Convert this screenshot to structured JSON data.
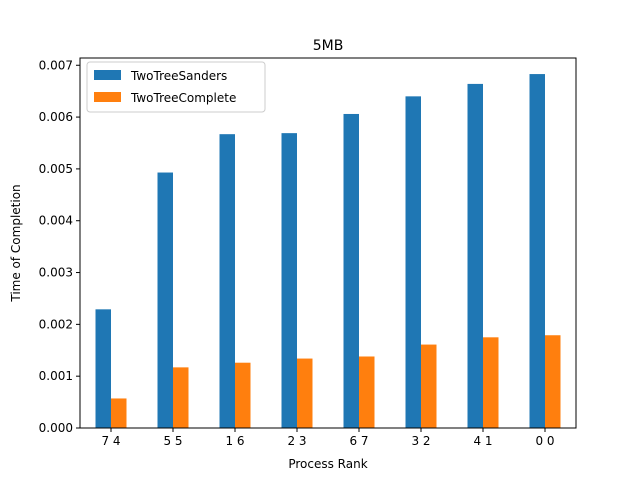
{
  "chart_data": {
    "type": "bar",
    "title": "5MB",
    "xlabel": "Process Rank",
    "ylabel": "Time of Completion",
    "categories": [
      "7 4",
      "5 5",
      "1 6",
      "2 3",
      "6 7",
      "3 2",
      "4 1",
      "0 0"
    ],
    "series": [
      {
        "name": "TwoTreeSanders",
        "color": "#1f77b4",
        "values": [
          0.00229,
          0.00493,
          0.00567,
          0.00569,
          0.00606,
          0.0064,
          0.00664,
          0.00683
        ]
      },
      {
        "name": "TwoTreeComplete",
        "color": "#ff7f0e",
        "values": [
          0.00057,
          0.00117,
          0.00126,
          0.00134,
          0.00138,
          0.00161,
          0.00175,
          0.00179
        ]
      }
    ],
    "ylim": [
      0,
      0.00714
    ],
    "yticks": [
      0.0,
      0.001,
      0.002,
      0.003,
      0.004,
      0.005,
      0.006,
      0.007
    ],
    "ytick_labels": [
      "0.000",
      "0.001",
      "0.002",
      "0.003",
      "0.004",
      "0.005",
      "0.006",
      "0.007"
    ],
    "grid": false,
    "legend_position": "top-left"
  }
}
